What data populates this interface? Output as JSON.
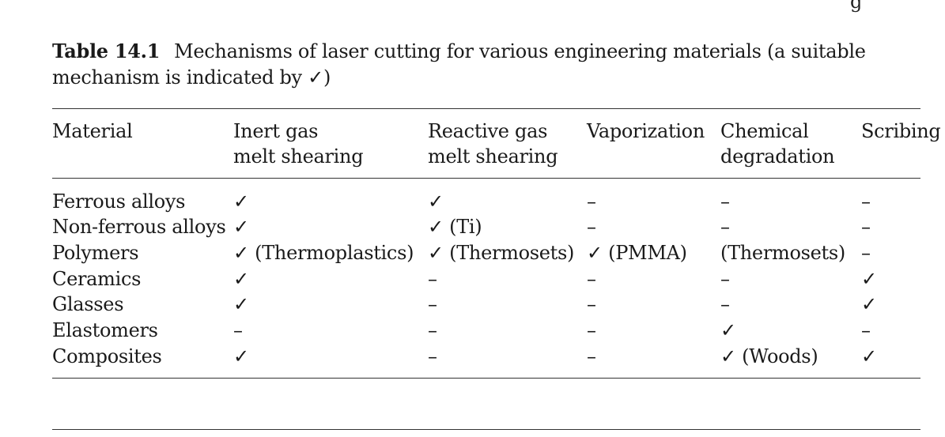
{
  "top_stub": "g",
  "caption": {
    "label": "Table 14.1",
    "text": "Mechanisms of laser cutting for various engineering materials (a suitable mechanism is indicated by ✓)"
  },
  "table": {
    "headers": [
      [
        "Material"
      ],
      [
        "Inert gas",
        "melt shearing"
      ],
      [
        "Reactive gas",
        "melt shearing"
      ],
      [
        "Vaporization"
      ],
      [
        "Chemical",
        "degradation"
      ],
      [
        "Scribing"
      ]
    ],
    "rows": [
      [
        "Ferrous alloys",
        "✓",
        "✓",
        "–",
        "–",
        "–"
      ],
      [
        "Non-ferrous alloys",
        "✓",
        "✓ (Ti)",
        "–",
        "–",
        "–"
      ],
      [
        "Polymers",
        "✓ (Thermoplastics)",
        "✓ (Thermosets)",
        "✓ (PMMA)",
        "(Thermosets)",
        "–"
      ],
      [
        "Ceramics",
        "✓",
        "–",
        "–",
        "–",
        "✓"
      ],
      [
        "Glasses",
        "✓",
        "–",
        "–",
        "–",
        "✓"
      ],
      [
        "Elastomers",
        "–",
        "–",
        "–",
        "✓",
        "–"
      ],
      [
        "Composites",
        "✓",
        "–",
        "–",
        "✓ (Woods)",
        "✓"
      ]
    ]
  }
}
